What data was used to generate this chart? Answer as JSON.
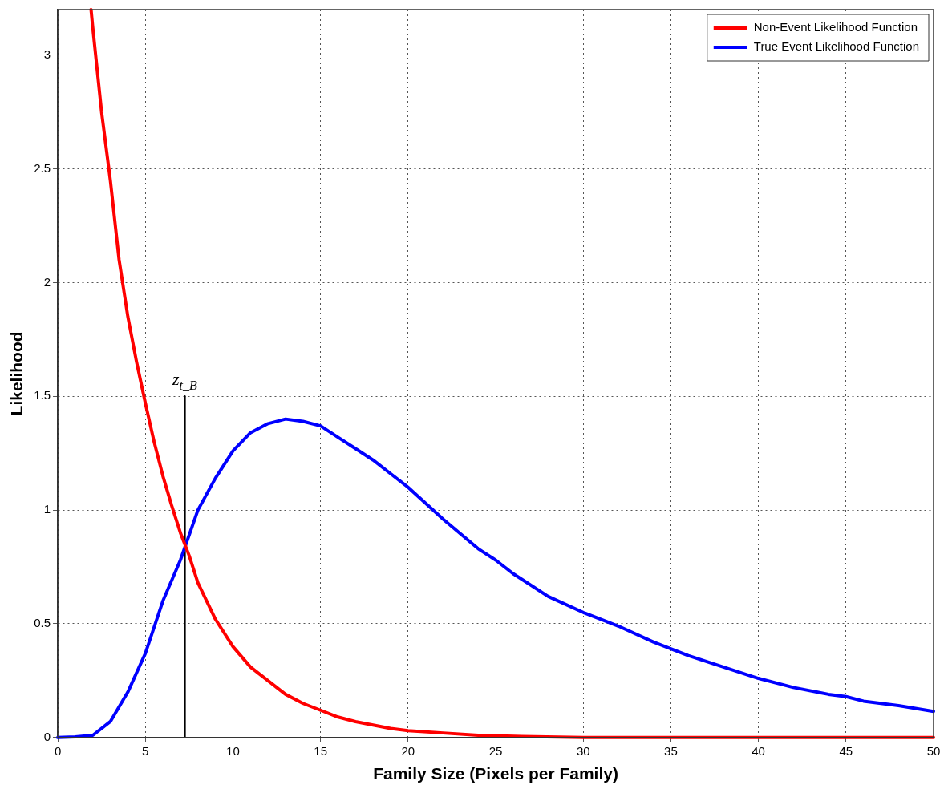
{
  "chart_data": {
    "type": "line",
    "xlabel": "Family Size (Pixels per Family)",
    "ylabel": "Likelihood",
    "xlim": [
      0,
      50
    ],
    "xticks": [
      0,
      5,
      10,
      15,
      20,
      25,
      30,
      35,
      40,
      45,
      50
    ],
    "ylim": [
      0,
      3.2
    ],
    "yticks": [
      0,
      0.5,
      1,
      1.5,
      2,
      2.5,
      3
    ],
    "grid": true,
    "legend": "top right",
    "marker": "none",
    "line_style": "solid",
    "annotations": [
      {
        "text": "z$_{t_B}$",
        "x": 7.25,
        "y": 1.5
      }
    ],
    "series": [
      {
        "name": "Non-Event Likelihood Function",
        "color": "#ff0000",
        "x": [
          1.9,
          2,
          2.5,
          3,
          3.5,
          4,
          4.5,
          5,
          5.5,
          6,
          6.5,
          7,
          7.5,
          8,
          8.5,
          9,
          10,
          11,
          12,
          13,
          14,
          15,
          16,
          17,
          18,
          19,
          20,
          22,
          24,
          26.5,
          30,
          40,
          50
        ],
        "values": [
          3.2,
          3.12,
          2.75,
          2.45,
          2.1,
          1.85,
          1.65,
          1.47,
          1.3,
          1.15,
          1.02,
          0.9,
          0.8,
          0.68,
          0.6,
          0.52,
          0.4,
          0.31,
          0.25,
          0.19,
          0.15,
          0.12,
          0.09,
          0.07,
          0.055,
          0.04,
          0.03,
          0.02,
          0.01,
          0.005,
          0,
          0,
          0
        ]
      },
      {
        "name": "True Event Likelihood Function",
        "color": "#0000ff",
        "x": [
          0,
          1,
          2,
          3,
          4,
          5,
          6,
          7,
          8,
          9,
          10,
          11,
          12,
          13,
          14,
          15,
          16,
          17,
          18,
          19,
          20,
          22,
          24,
          25,
          26,
          28,
          30,
          32,
          34,
          35,
          36,
          38,
          40,
          42,
          44,
          45,
          46,
          48,
          50
        ],
        "values": [
          0,
          0.003,
          0.01,
          0.07,
          0.2,
          0.37,
          0.6,
          0.78,
          1.0,
          1.14,
          1.26,
          1.34,
          1.38,
          1.4,
          1.39,
          1.37,
          1.32,
          1.27,
          1.22,
          1.16,
          1.1,
          0.96,
          0.83,
          0.78,
          0.72,
          0.62,
          0.55,
          0.49,
          0.42,
          0.39,
          0.36,
          0.31,
          0.26,
          0.22,
          0.19,
          0.18,
          0.16,
          0.14,
          0.115
        ]
      },
      {
        "type": "line",
        "color": "#000000",
        "x": [
          7.25,
          7.25
        ],
        "values": [
          0,
          1.5
        ]
      }
    ]
  }
}
